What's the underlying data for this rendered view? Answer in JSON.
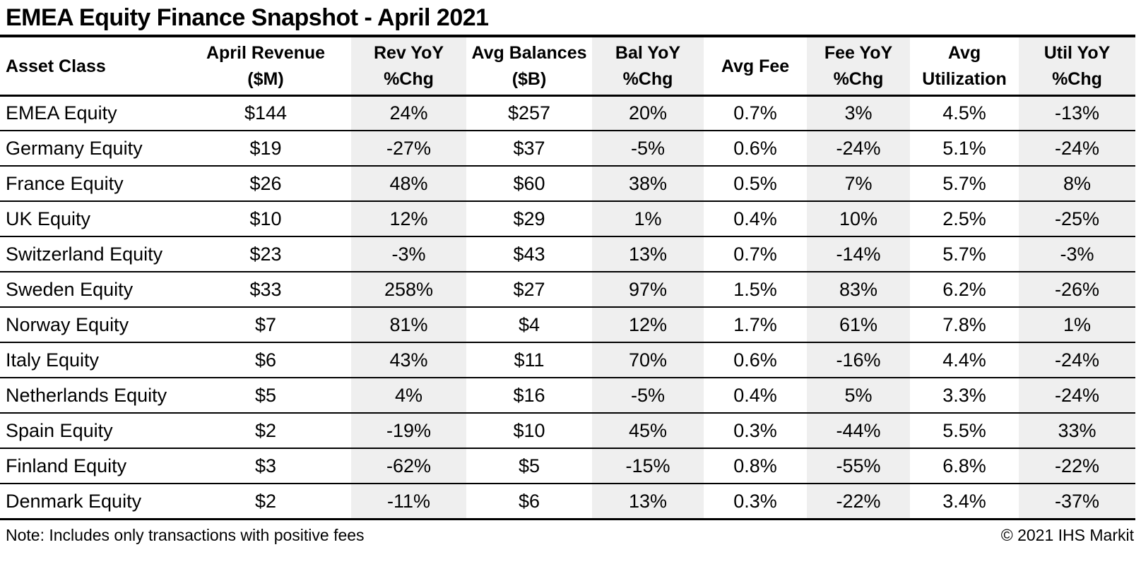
{
  "title": "EMEA Equity Finance Snapshot - April 2021",
  "footer": {
    "note": "Note: Includes only transactions with positive fees",
    "copyright": "© 2021 IHS Markit"
  },
  "colors": {
    "shaded_column_bg": "#efefef",
    "text": "#000000",
    "rule": "#000000",
    "background": "#ffffff"
  },
  "chart_data": {
    "type": "table",
    "title": "EMEA Equity Finance Snapshot - April 2021",
    "columns": [
      {
        "label": "Asset Class",
        "line1": "Asset Class",
        "line2": "",
        "shaded": false,
        "align": "left"
      },
      {
        "label": "April Revenue ($M)",
        "line1": "April Revenue",
        "line2": "($M)",
        "shaded": false,
        "align": "center"
      },
      {
        "label": "Rev YoY %Chg",
        "line1": "Rev YoY",
        "line2": "%Chg",
        "shaded": true,
        "align": "center"
      },
      {
        "label": "Avg Balances ($B)",
        "line1": "Avg Balances",
        "line2": "($B)",
        "shaded": false,
        "align": "center"
      },
      {
        "label": "Bal YoY %Chg",
        "line1": "Bal YoY",
        "line2": "%Chg",
        "shaded": true,
        "align": "center"
      },
      {
        "label": "Avg Fee",
        "line1": "Avg Fee",
        "line2": "",
        "shaded": false,
        "align": "center"
      },
      {
        "label": "Fee YoY %Chg",
        "line1": "Fee YoY",
        "line2": "%Chg",
        "shaded": true,
        "align": "center"
      },
      {
        "label": "Avg Utilization",
        "line1": "Avg",
        "line2": "Utilization",
        "shaded": false,
        "align": "center"
      },
      {
        "label": "Util YoY %Chg",
        "line1": "Util YoY",
        "line2": "%Chg",
        "shaded": true,
        "align": "center"
      }
    ],
    "rows": [
      [
        "EMEA Equity",
        "$144",
        "24%",
        "$257",
        "20%",
        "0.7%",
        "3%",
        "4.5%",
        "-13%"
      ],
      [
        "Germany Equity",
        "$19",
        "-27%",
        "$37",
        "-5%",
        "0.6%",
        "-24%",
        "5.1%",
        "-24%"
      ],
      [
        "France Equity",
        "$26",
        "48%",
        "$60",
        "38%",
        "0.5%",
        "7%",
        "5.7%",
        "8%"
      ],
      [
        "UK Equity",
        "$10",
        "12%",
        "$29",
        "1%",
        "0.4%",
        "10%",
        "2.5%",
        "-25%"
      ],
      [
        "Switzerland Equity",
        "$23",
        "-3%",
        "$43",
        "13%",
        "0.7%",
        "-14%",
        "5.7%",
        "-3%"
      ],
      [
        "Sweden Equity",
        "$33",
        "258%",
        "$27",
        "97%",
        "1.5%",
        "83%",
        "6.2%",
        "-26%"
      ],
      [
        "Norway Equity",
        "$7",
        "81%",
        "$4",
        "12%",
        "1.7%",
        "61%",
        "7.8%",
        "1%"
      ],
      [
        "Italy Equity",
        "$6",
        "43%",
        "$11",
        "70%",
        "0.6%",
        "-16%",
        "4.4%",
        "-24%"
      ],
      [
        "Netherlands Equity",
        "$5",
        "4%",
        "$16",
        "-5%",
        "0.4%",
        "5%",
        "3.3%",
        "-24%"
      ],
      [
        "Spain Equity",
        "$2",
        "-19%",
        "$10",
        "45%",
        "0.3%",
        "-44%",
        "5.5%",
        "33%"
      ],
      [
        "Finland Equity",
        "$3",
        "-62%",
        "$5",
        "-15%",
        "0.8%",
        "-55%",
        "6.8%",
        "-22%"
      ],
      [
        "Denmark Equity",
        "$2",
        "-11%",
        "$6",
        "13%",
        "0.3%",
        "-22%",
        "3.4%",
        "-37%"
      ]
    ]
  }
}
